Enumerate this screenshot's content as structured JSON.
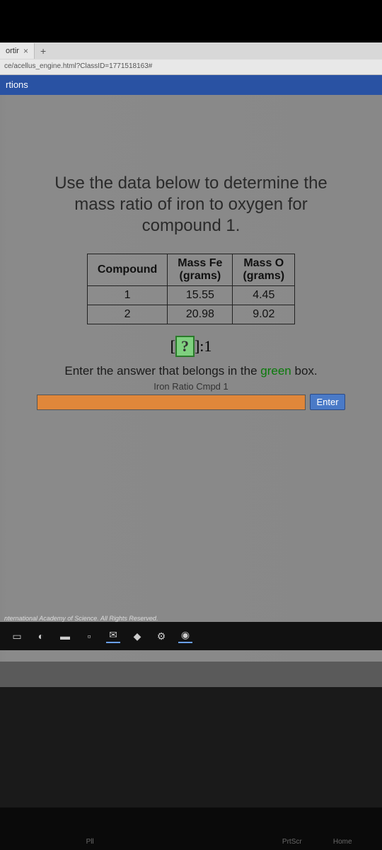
{
  "browser": {
    "tab_title": "ortir",
    "url": "ce/acellus_engine.html?ClassID=1771518163#",
    "strip_label": "rtions"
  },
  "question": {
    "line1": "Use the data below to determine the",
    "line2": "mass ratio of iron to oxygen for",
    "line3": "compound 1."
  },
  "table": {
    "headers": {
      "c1": "Compound",
      "c2a": "Mass Fe",
      "c2b": "(grams)",
      "c3a": "Mass O",
      "c3b": "(grams)"
    },
    "rows": [
      {
        "compound": "1",
        "massFe": "15.55",
        "massO": "4.45"
      },
      {
        "compound": "2",
        "massFe": "20.98",
        "massO": "9.02"
      }
    ]
  },
  "ratio": {
    "left_bracket": "[",
    "unknown": "?",
    "right_bracket": "]",
    "suffix": ":1"
  },
  "instruction": {
    "pre": "Enter the answer that belongs in the ",
    "green": "green",
    "post": " box."
  },
  "sub_label": "Iron Ratio Cmpd 1",
  "enter_label": "Enter",
  "footer": "nternational Academy of Science. All Rights Reserved.",
  "colors": {
    "blue_strip": "#2952a3",
    "green_box_bg": "#7fd07f",
    "green_box_border": "#2a7a2a",
    "answer_bg": "#e0873a",
    "enter_bg": "#4a7ac7"
  },
  "keyboard": {
    "k1": "",
    "k2": "Pll",
    "k3": "",
    "k4": "",
    "k5": "",
    "k6": "PrtScr",
    "k7": "Home"
  }
}
